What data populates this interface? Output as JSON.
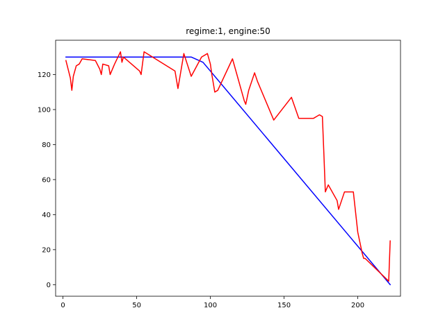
{
  "chart_data": {
    "type": "line",
    "title": "regime:1, engine:50",
    "xlabel": "",
    "ylabel": "",
    "xlim": [
      -5,
      229
    ],
    "ylim": [
      -6.6,
      139.6
    ],
    "xticks": [
      0,
      50,
      100,
      150,
      200
    ],
    "yticks": [
      0,
      20,
      40,
      60,
      80,
      100,
      120
    ],
    "grid": false,
    "series": [
      {
        "color": "#0000ff",
        "x": [
          2,
          87,
          95,
          222
        ],
        "y": [
          130,
          130,
          127,
          0
        ]
      },
      {
        "color": "#ff0000",
        "x": [
          2,
          5,
          6,
          7,
          9,
          11,
          13,
          22,
          25,
          26,
          27,
          31,
          32,
          35,
          39,
          40,
          41,
          52,
          53,
          55,
          76,
          78,
          82,
          87,
          94,
          98,
          100,
          101,
          103,
          105,
          115,
          123,
          124,
          126,
          130,
          132,
          143,
          155,
          160,
          162,
          167,
          170,
          172,
          174,
          176,
          177,
          178,
          180,
          186,
          187,
          189,
          191,
          197,
          200,
          203,
          204,
          205,
          221,
          222
        ],
        "y": [
          128,
          118,
          111,
          119,
          125,
          126,
          129,
          128,
          123,
          120,
          126,
          125,
          120,
          126,
          133,
          127,
          130,
          122,
          120,
          133,
          122,
          112,
          132,
          119,
          130,
          132,
          126,
          120,
          110,
          111,
          129,
          105,
          103,
          111,
          121,
          116,
          94,
          107,
          95,
          95,
          95,
          95,
          96,
          97,
          96,
          75,
          53,
          57,
          48,
          43,
          48,
          53,
          53,
          30,
          18,
          15,
          15,
          2,
          25
        ]
      }
    ]
  }
}
